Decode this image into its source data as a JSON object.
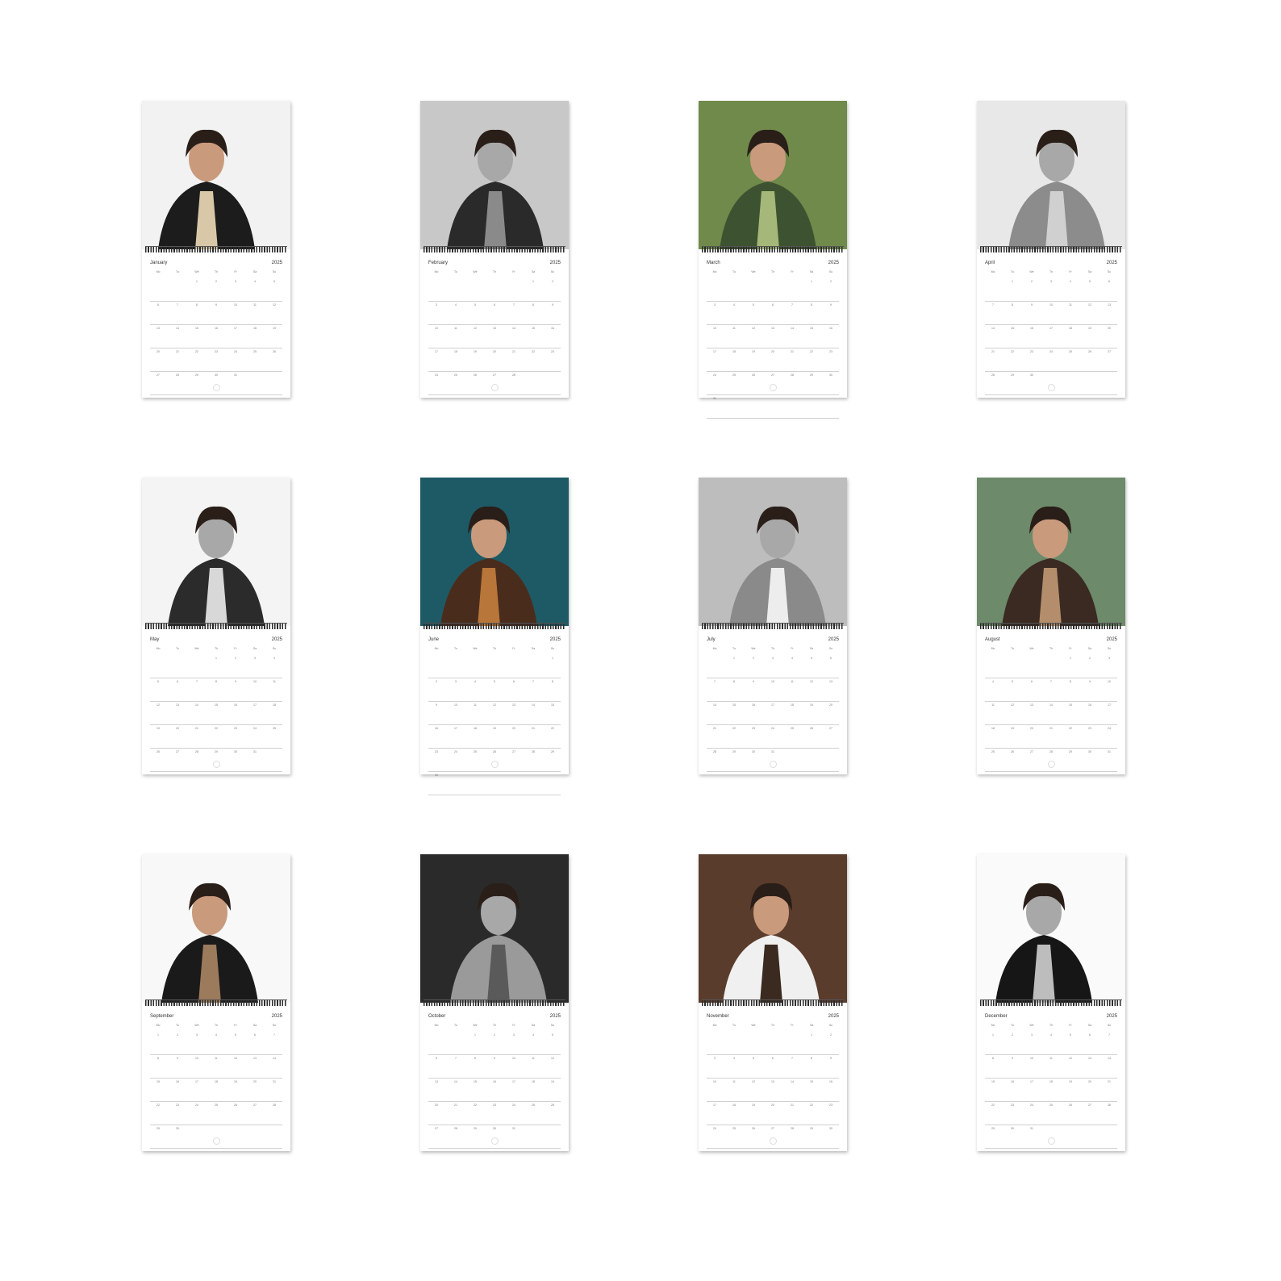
{
  "year": "2025",
  "months": [
    {
      "month": "January",
      "weekdays": [
        "Mo",
        "Tu",
        "We",
        "Th",
        "Fr",
        "Sa",
        "Su"
      ],
      "rows": [
        [
          "",
          "",
          "1",
          "2",
          "3",
          "4",
          "5"
        ],
        [
          "6",
          "7",
          "8",
          "9",
          "10",
          "11",
          "12"
        ],
        [
          "13",
          "14",
          "15",
          "16",
          "17",
          "18",
          "19"
        ],
        [
          "20",
          "21",
          "22",
          "23",
          "24",
          "25",
          "26"
        ],
        [
          "27",
          "28",
          "29",
          "30",
          "31",
          "",
          ""
        ]
      ]
    },
    {
      "month": "February",
      "weekdays": [
        "Mo",
        "Tu",
        "We",
        "Th",
        "Fr",
        "Sa",
        "Su"
      ],
      "rows": [
        [
          "",
          "",
          "",
          "",
          "",
          "1",
          "2"
        ],
        [
          "3",
          "4",
          "5",
          "6",
          "7",
          "8",
          "9"
        ],
        [
          "10",
          "11",
          "12",
          "13",
          "14",
          "15",
          "16"
        ],
        [
          "17",
          "18",
          "19",
          "20",
          "21",
          "22",
          "23"
        ],
        [
          "24",
          "25",
          "26",
          "27",
          "28",
          "",
          ""
        ]
      ]
    },
    {
      "month": "March",
      "weekdays": [
        "Mo",
        "Tu",
        "We",
        "Th",
        "Fr",
        "Sa",
        "Su"
      ],
      "rows": [
        [
          "",
          "",
          "",
          "",
          "",
          "1",
          "2"
        ],
        [
          "3",
          "4",
          "5",
          "6",
          "7",
          "8",
          "9"
        ],
        [
          "10",
          "11",
          "12",
          "13",
          "14",
          "15",
          "16"
        ],
        [
          "17",
          "18",
          "19",
          "20",
          "21",
          "22",
          "23"
        ],
        [
          "24",
          "25",
          "26",
          "27",
          "28",
          "29",
          "30"
        ],
        [
          "31",
          "",
          "",
          "",
          "",
          "",
          ""
        ]
      ]
    },
    {
      "month": "April",
      "weekdays": [
        "Mo",
        "Tu",
        "We",
        "Th",
        "Fr",
        "Sa",
        "Su"
      ],
      "rows": [
        [
          "",
          "1",
          "2",
          "3",
          "4",
          "5",
          "6"
        ],
        [
          "7",
          "8",
          "9",
          "10",
          "11",
          "12",
          "13"
        ],
        [
          "14",
          "15",
          "16",
          "17",
          "18",
          "19",
          "20"
        ],
        [
          "21",
          "22",
          "23",
          "24",
          "25",
          "26",
          "27"
        ],
        [
          "28",
          "29",
          "30",
          "",
          "",
          "",
          ""
        ]
      ]
    },
    {
      "month": "May",
      "weekdays": [
        "Mo",
        "Tu",
        "We",
        "Th",
        "Fr",
        "Sa",
        "Su"
      ],
      "rows": [
        [
          "",
          "",
          "",
          "1",
          "2",
          "3",
          "4"
        ],
        [
          "5",
          "6",
          "7",
          "8",
          "9",
          "10",
          "11"
        ],
        [
          "12",
          "13",
          "14",
          "15",
          "16",
          "17",
          "18"
        ],
        [
          "19",
          "20",
          "21",
          "22",
          "23",
          "24",
          "25"
        ],
        [
          "26",
          "27",
          "28",
          "29",
          "30",
          "31",
          ""
        ]
      ]
    },
    {
      "month": "June",
      "weekdays": [
        "Mo",
        "Tu",
        "We",
        "Th",
        "Fr",
        "Sa",
        "Su"
      ],
      "rows": [
        [
          "",
          "",
          "",
          "",
          "",
          "",
          "1"
        ],
        [
          "2",
          "3",
          "4",
          "5",
          "6",
          "7",
          "8"
        ],
        [
          "9",
          "10",
          "11",
          "12",
          "13",
          "14",
          "15"
        ],
        [
          "16",
          "17",
          "18",
          "19",
          "20",
          "21",
          "22"
        ],
        [
          "23",
          "24",
          "25",
          "26",
          "27",
          "28",
          "29"
        ],
        [
          "30",
          "",
          "",
          "",
          "",
          "",
          ""
        ]
      ]
    },
    {
      "month": "July",
      "weekdays": [
        "Mo",
        "Tu",
        "We",
        "Th",
        "Fr",
        "Sa",
        "Su"
      ],
      "rows": [
        [
          "",
          "1",
          "2",
          "3",
          "4",
          "5",
          "6"
        ],
        [
          "7",
          "8",
          "9",
          "10",
          "11",
          "12",
          "13"
        ],
        [
          "14",
          "15",
          "16",
          "17",
          "18",
          "19",
          "20"
        ],
        [
          "21",
          "22",
          "23",
          "24",
          "25",
          "26",
          "27"
        ],
        [
          "28",
          "29",
          "30",
          "31",
          "",
          "",
          ""
        ]
      ]
    },
    {
      "month": "August",
      "weekdays": [
        "Mo",
        "Tu",
        "We",
        "Th",
        "Fr",
        "Sa",
        "Su"
      ],
      "rows": [
        [
          "",
          "",
          "",
          "",
          "1",
          "2",
          "3"
        ],
        [
          "4",
          "5",
          "6",
          "7",
          "8",
          "9",
          "10"
        ],
        [
          "11",
          "12",
          "13",
          "14",
          "15",
          "16",
          "17"
        ],
        [
          "18",
          "19",
          "20",
          "21",
          "22",
          "23",
          "24"
        ],
        [
          "25",
          "26",
          "27",
          "28",
          "29",
          "30",
          "31"
        ]
      ]
    },
    {
      "month": "September",
      "weekdays": [
        "Mo",
        "Tu",
        "We",
        "Th",
        "Fr",
        "Sa",
        "Su"
      ],
      "rows": [
        [
          "1",
          "2",
          "3",
          "4",
          "5",
          "6",
          "7"
        ],
        [
          "8",
          "9",
          "10",
          "11",
          "12",
          "13",
          "14"
        ],
        [
          "15",
          "16",
          "17",
          "18",
          "19",
          "20",
          "21"
        ],
        [
          "22",
          "23",
          "24",
          "25",
          "26",
          "27",
          "28"
        ],
        [
          "29",
          "30",
          "",
          "",
          "",
          "",
          ""
        ]
      ]
    },
    {
      "month": "October",
      "weekdays": [
        "Mo",
        "Tu",
        "We",
        "Th",
        "Fr",
        "Sa",
        "Su"
      ],
      "rows": [
        [
          "",
          "",
          "1",
          "2",
          "3",
          "4",
          "5"
        ],
        [
          "6",
          "7",
          "8",
          "9",
          "10",
          "11",
          "12"
        ],
        [
          "13",
          "14",
          "15",
          "16",
          "17",
          "18",
          "19"
        ],
        [
          "20",
          "21",
          "22",
          "23",
          "24",
          "25",
          "26"
        ],
        [
          "27",
          "28",
          "29",
          "30",
          "31",
          "",
          ""
        ]
      ]
    },
    {
      "month": "November",
      "weekdays": [
        "Mo",
        "Tu",
        "We",
        "Th",
        "Fr",
        "Sa",
        "Su"
      ],
      "rows": [
        [
          "",
          "",
          "",
          "",
          "",
          "1",
          "2"
        ],
        [
          "3",
          "4",
          "5",
          "6",
          "7",
          "8",
          "9"
        ],
        [
          "10",
          "11",
          "12",
          "13",
          "14",
          "15",
          "16"
        ],
        [
          "17",
          "18",
          "19",
          "20",
          "21",
          "22",
          "23"
        ],
        [
          "24",
          "25",
          "26",
          "27",
          "28",
          "29",
          "30"
        ]
      ]
    },
    {
      "month": "December",
      "weekdays": [
        "Mo",
        "Tu",
        "We",
        "Th",
        "Fr",
        "Sa",
        "Su"
      ],
      "rows": [
        [
          "1",
          "2",
          "3",
          "4",
          "5",
          "6",
          "7"
        ],
        [
          "8",
          "9",
          "10",
          "11",
          "12",
          "13",
          "14"
        ],
        [
          "15",
          "16",
          "17",
          "18",
          "19",
          "20",
          "21"
        ],
        [
          "22",
          "23",
          "24",
          "25",
          "26",
          "27",
          "28"
        ],
        [
          "29",
          "30",
          "31",
          "",
          "",
          "",
          ""
        ]
      ]
    }
  ],
  "photos": [
    {
      "bg": "#f2f2f2",
      "fg": "#1c1c1c",
      "accent": "#d9c8a8"
    },
    {
      "bg": "#c8c8c8",
      "fg": "#2a2a2a",
      "accent": "#8a8a8a"
    },
    {
      "bg": "#6f8a4a",
      "fg": "#3d5230",
      "accent": "#a6b879"
    },
    {
      "bg": "#e8e8e8",
      "fg": "#8c8c8c",
      "accent": "#d0d0d0"
    },
    {
      "bg": "#f4f4f4",
      "fg": "#2b2b2b",
      "accent": "#d8d8d8"
    },
    {
      "bg": "#1e5a66",
      "fg": "#4a2c1c",
      "accent": "#b8763a"
    },
    {
      "bg": "#bdbdbd",
      "fg": "#8a8a8a",
      "accent": "#ededed"
    },
    {
      "bg": "#6d8a6a",
      "fg": "#3a2a22",
      "accent": "#b48e6c"
    },
    {
      "bg": "#f8f8f8",
      "fg": "#1a1a1a",
      "accent": "#9c7a5c"
    },
    {
      "bg": "#2a2a2a",
      "fg": "#9a9a9a",
      "accent": "#5a5a5a"
    },
    {
      "bg": "#5a3c2c",
      "fg": "#f0f0f0",
      "accent": "#3a2a20"
    },
    {
      "bg": "#fafafa",
      "fg": "#161616",
      "accent": "#bdbdbd"
    }
  ]
}
